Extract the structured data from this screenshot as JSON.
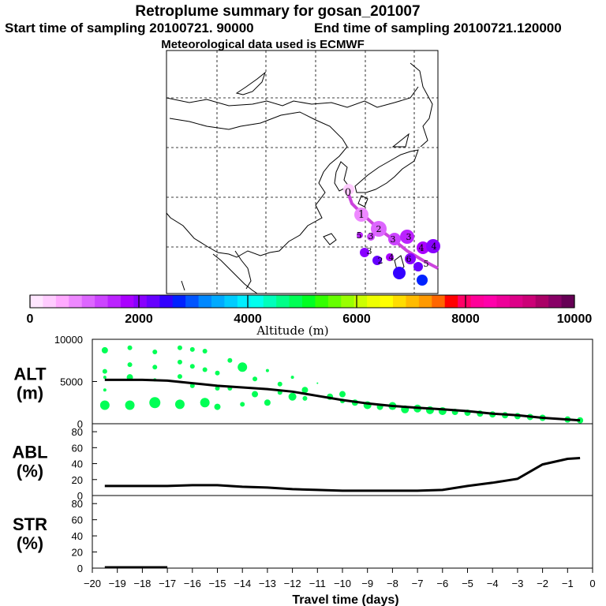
{
  "title": "Retroplume summary for gosan_201007",
  "start_label": "Start time of sampling 20100721. 90000",
  "end_label": "End time of sampling 20100721.120000",
  "met_label": "Meteorological data used is ECMWF",
  "colorbar": {
    "label": "Altitude  (m)",
    "ticks": [
      "0",
      "2000",
      "4000",
      "6000",
      "8000",
      "10000"
    ],
    "min": 0,
    "max": 10000,
    "colors": [
      "#ffe6ff",
      "#ffccff",
      "#ffaaff",
      "#ee88ff",
      "#dd66ff",
      "#cc44ff",
      "#bb22ff",
      "#aa00ff",
      "#8800ff",
      "#6600ff",
      "#3300ff",
      "#0022ff",
      "#0055ff",
      "#0088ff",
      "#00aaff",
      "#00ccff",
      "#00eeff",
      "#00ffee",
      "#00ffbb",
      "#00ff88",
      "#00ff55",
      "#00ff22",
      "#33ff00",
      "#66ff00",
      "#99ff00",
      "#ccff00",
      "#eeff00",
      "#ffff00",
      "#ffdd00",
      "#ffbb00",
      "#ff9900",
      "#ff6600",
      "#ff0000",
      "#ff0066",
      "#ff0099",
      "#ff00aa",
      "#ee0099",
      "#dd0088",
      "#cc0077",
      "#aa0066",
      "#880066",
      "#660055"
    ]
  },
  "map_labels": [
    "0",
    "1",
    "2",
    "3",
    "3",
    "4",
    "4",
    "5",
    "3",
    "4",
    "5",
    "6",
    "2",
    "3"
  ],
  "chart_data": [
    {
      "type": "scatter",
      "panel": "ALT",
      "ylabel_line1": "ALT",
      "ylabel_line2": "(m)",
      "ylim": [
        0,
        10000
      ],
      "yticks": [
        "10000",
        "5000",
        "0"
      ],
      "ytick_values": [
        10000,
        5000,
        0
      ],
      "mean_line": {
        "x": [
          -19.5,
          -18,
          -17,
          -16,
          -15,
          -14,
          -13,
          -12,
          -11,
          -10,
          -9,
          -8,
          -7,
          -6,
          -5,
          -4,
          -3,
          -2,
          -1,
          -0.5
        ],
        "y": [
          5200,
          5200,
          5100,
          4800,
          4500,
          4300,
          4100,
          3800,
          3300,
          2800,
          2400,
          2100,
          1900,
          1700,
          1500,
          1200,
          1000,
          700,
          500,
          400
        ]
      },
      "points": {
        "x": [
          -19.5,
          -19.5,
          -19.5,
          -19.5,
          -19.5,
          -18.5,
          -18.5,
          -18.5,
          -18.5,
          -17.5,
          -17.5,
          -17.5,
          -17.5,
          -16.5,
          -16.5,
          -16.5,
          -16.5,
          -16,
          -16,
          -16,
          -15.5,
          -15.5,
          -15.5,
          -15,
          -15,
          -15,
          -14.5,
          -14.5,
          -14,
          -14,
          -13.5,
          -13.5,
          -13,
          -13,
          -12.5,
          -12.5,
          -12,
          -12,
          -11.5,
          -11.5,
          -11,
          -10.5,
          -10,
          -10,
          -9.5,
          -9,
          -8.5,
          -8,
          -7.5,
          -7,
          -6.5,
          -6,
          -5.5,
          -5,
          -4.5,
          -4,
          -3.5,
          -3,
          -2.5,
          -2,
          -1,
          -0.5
        ],
        "y": [
          8700,
          6200,
          4000,
          5500,
          2200,
          9000,
          7000,
          5500,
          2200,
          8500,
          6700,
          5200,
          2500,
          9000,
          7300,
          5600,
          2300,
          4500,
          6800,
          8800,
          8600,
          6400,
          2500,
          4200,
          6000,
          2000,
          7500,
          4200,
          6700,
          2300,
          3500,
          5300,
          6300,
          2500,
          3700,
          4700,
          5500,
          3200,
          3000,
          4000,
          4800,
          3200,
          2700,
          3500,
          2500,
          2200,
          2000,
          2100,
          1700,
          1800,
          1600,
          1500,
          1400,
          1300,
          1200,
          1100,
          1000,
          900,
          800,
          700,
          500,
          400
        ],
        "size": [
          4,
          3,
          2,
          2,
          6,
          3,
          3,
          4,
          6,
          3,
          3,
          2,
          7,
          3,
          3,
          3,
          6,
          3,
          3,
          3,
          3,
          3,
          6,
          3,
          3,
          4,
          3,
          3,
          6,
          3,
          4,
          3,
          2,
          4,
          3,
          3,
          2,
          5,
          3,
          4,
          1,
          4,
          3,
          4,
          4,
          5,
          4,
          5,
          5,
          5,
          5,
          5,
          4,
          4,
          4,
          4,
          4,
          4,
          4,
          4,
          4,
          4
        ]
      }
    },
    {
      "type": "line",
      "panel": "ABL",
      "ylabel_line1": "ABL",
      "ylabel_line2": "(%)",
      "ylim": [
        0,
        90
      ],
      "yticks": [
        "80",
        "60",
        "40",
        "20",
        "0"
      ],
      "ytick_values": [
        80,
        60,
        40,
        20,
        0
      ],
      "x": [
        -19.5,
        -18,
        -17,
        -16,
        -15,
        -14,
        -13,
        -12,
        -11,
        -10,
        -9,
        -8,
        -7,
        -6,
        -5,
        -4,
        -3,
        -2,
        -1,
        -0.5
      ],
      "y": [
        12,
        12,
        12,
        13,
        13,
        11,
        10,
        8,
        7,
        6,
        6,
        6,
        6,
        7,
        12,
        16,
        21,
        39,
        46,
        47
      ]
    },
    {
      "type": "line",
      "panel": "STR",
      "ylabel_line1": "STR",
      "ylabel_line2": "(%)",
      "ylim": [
        0,
        90
      ],
      "yticks": [
        "80",
        "60",
        "40",
        "20",
        "0"
      ],
      "ytick_values": [
        80,
        60,
        40,
        20,
        0
      ],
      "x": [
        -19.5,
        -17
      ],
      "y": [
        1,
        1
      ]
    }
  ],
  "x_axis": {
    "label": "Travel time (days)",
    "xlim": [
      -20,
      0
    ],
    "ticks": [
      "−20",
      "−19",
      "−18",
      "−17",
      "−16",
      "−15",
      "−14",
      "−13",
      "−12",
      "−11",
      "−10",
      "−9",
      "−8",
      "−7",
      "−6",
      "−5",
      "−4",
      "−3",
      "−2",
      "−1",
      "0"
    ],
    "tick_values": [
      -20,
      -19,
      -18,
      -17,
      -16,
      -15,
      -14,
      -13,
      -12,
      -11,
      -10,
      -9,
      -8,
      -7,
      -6,
      -5,
      -4,
      -3,
      -2,
      -1,
      0
    ]
  }
}
